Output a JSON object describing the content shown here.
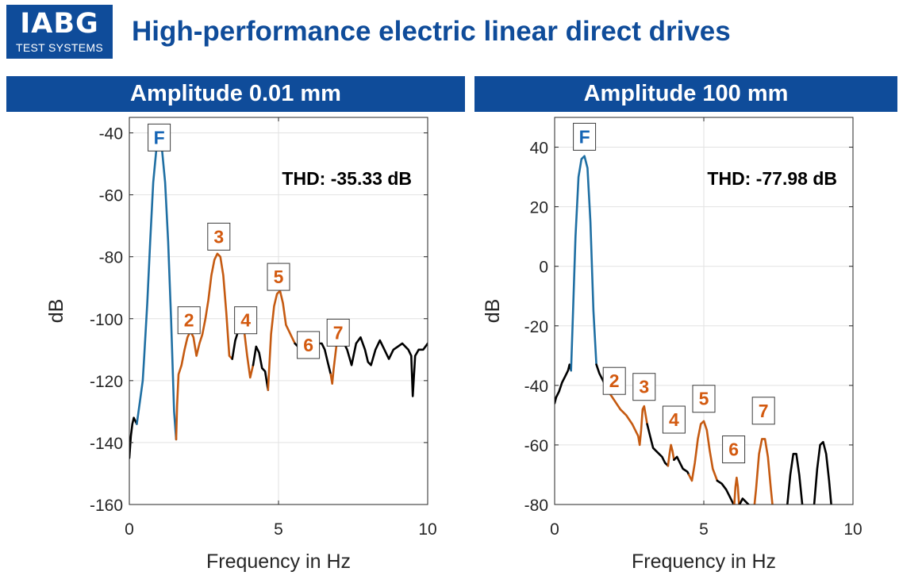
{
  "logo": {
    "brand": "IABG",
    "subtitle": "TEST SYSTEMS"
  },
  "title": "High-performance electric linear direct drives",
  "colors": {
    "brand_blue": "#0f4c9a",
    "fundamental": "#1f6fa3",
    "harmonic": "#c55a11",
    "other": "#000000",
    "label_blue": "#1565b5",
    "label_orange": "#d35a10"
  },
  "chart_data": [
    {
      "type": "line",
      "header": "Amplitude 0.01 mm",
      "xlabel": "Frequency in Hz",
      "ylabel": "dB",
      "xlim": [
        0,
        10
      ],
      "ylim": [
        -160,
        -35
      ],
      "xticks": [
        0,
        5,
        10
      ],
      "yticks": [
        -160,
        -140,
        -120,
        -100,
        -80,
        -60,
        -40
      ],
      "grid": true,
      "annotation": "THD: -35.33 dB",
      "peak_labels": [
        {
          "label": "F",
          "x": 1.0,
          "y": -41.5,
          "kind": "fundamental"
        },
        {
          "label": "2",
          "x": 2.0,
          "y": -100.5,
          "kind": "harmonic"
        },
        {
          "label": "3",
          "x": 3.0,
          "y": -73.5,
          "kind": "harmonic"
        },
        {
          "label": "4",
          "x": 3.9,
          "y": -100.5,
          "kind": "harmonic"
        },
        {
          "label": "5",
          "x": 5.0,
          "y": -86.5,
          "kind": "harmonic"
        },
        {
          "label": "6",
          "x": 6.0,
          "y": -108.5,
          "kind": "harmonic"
        },
        {
          "label": "7",
          "x": 7.0,
          "y": -104.5,
          "kind": "harmonic"
        }
      ],
      "series": [
        {
          "kind": "other",
          "points": [
            [
              0.0,
              -145
            ],
            [
              0.05,
              -138
            ],
            [
              0.1,
              -134
            ],
            [
              0.15,
              -132
            ],
            [
              0.2,
              -133
            ],
            [
              0.25,
              -134
            ]
          ]
        },
        {
          "kind": "fundamental",
          "points": [
            [
              0.25,
              -134
            ],
            [
              0.35,
              -127
            ],
            [
              0.45,
              -120
            ],
            [
              0.5,
              -112
            ],
            [
              0.6,
              -95
            ],
            [
              0.7,
              -75
            ],
            [
              0.8,
              -56
            ],
            [
              0.9,
              -46
            ],
            [
              1.0,
              -43
            ],
            [
              1.1,
              -46
            ],
            [
              1.2,
              -56
            ],
            [
              1.3,
              -75
            ],
            [
              1.4,
              -100
            ],
            [
              1.5,
              -130
            ],
            [
              1.57,
              -139
            ]
          ]
        },
        {
          "kind": "harmonic",
          "points": [
            [
              1.57,
              -139
            ],
            [
              1.6,
              -128
            ],
            [
              1.65,
              -118
            ],
            [
              1.75,
              -115
            ],
            [
              1.85,
              -110
            ],
            [
              1.95,
              -106
            ],
            [
              2.05,
              -104
            ],
            [
              2.15,
              -106
            ],
            [
              2.25,
              -112
            ],
            [
              2.35,
              -108
            ],
            [
              2.45,
              -105
            ],
            [
              2.55,
              -100
            ],
            [
              2.65,
              -94
            ],
            [
              2.75,
              -86
            ],
            [
              2.85,
              -81
            ],
            [
              2.95,
              -79
            ],
            [
              3.05,
              -80
            ],
            [
              3.15,
              -86
            ],
            [
              3.25,
              -98
            ],
            [
              3.35,
              -112
            ],
            [
              3.45,
              -113
            ]
          ]
        },
        {
          "kind": "other",
          "points": [
            [
              3.45,
              -113
            ],
            [
              3.55,
              -107
            ],
            [
              3.65,
              -104
            ],
            [
              3.75,
              -103
            ],
            [
              3.85,
              -104
            ]
          ]
        },
        {
          "kind": "harmonic",
          "points": [
            [
              3.85,
              -104
            ],
            [
              3.95,
              -112
            ],
            [
              4.05,
              -119
            ],
            [
              4.15,
              -115
            ]
          ]
        },
        {
          "kind": "other",
          "points": [
            [
              4.15,
              -115
            ],
            [
              4.25,
              -109
            ],
            [
              4.35,
              -111
            ],
            [
              4.45,
              -116
            ],
            [
              4.55,
              -117
            ],
            [
              4.65,
              -123
            ]
          ]
        },
        {
          "kind": "harmonic",
          "points": [
            [
              4.65,
              -123
            ],
            [
              4.75,
              -105
            ],
            [
              4.85,
              -96
            ],
            [
              4.95,
              -92
            ],
            [
              5.05,
              -91
            ],
            [
              5.15,
              -95
            ],
            [
              5.25,
              -102
            ],
            [
              5.35,
              -104
            ],
            [
              5.45,
              -106
            ],
            [
              5.55,
              -108
            ]
          ]
        },
        {
          "kind": "other",
          "points": [
            [
              5.55,
              -108
            ],
            [
              5.65,
              -109
            ],
            [
              5.75,
              -107
            ],
            [
              5.85,
              -109
            ]
          ]
        },
        {
          "kind": "harmonic",
          "points": [
            [
              5.85,
              -109
            ],
            [
              5.95,
              -110
            ],
            [
              6.05,
              -110
            ],
            [
              6.15,
              -109
            ],
            [
              6.25,
              -110
            ]
          ]
        },
        {
          "kind": "other",
          "points": [
            [
              6.25,
              -110
            ],
            [
              6.35,
              -108
            ],
            [
              6.45,
              -108
            ],
            [
              6.55,
              -110
            ],
            [
              6.65,
              -114
            ],
            [
              6.75,
              -118
            ]
          ]
        },
        {
          "kind": "harmonic",
          "points": [
            [
              6.75,
              -118
            ],
            [
              6.8,
              -121
            ],
            [
              6.85,
              -116
            ],
            [
              6.95,
              -108
            ],
            [
              7.05,
              -106
            ],
            [
              7.15,
              -107
            ]
          ]
        },
        {
          "kind": "other",
          "points": [
            [
              7.15,
              -107
            ],
            [
              7.3,
              -110
            ],
            [
              7.45,
              -115
            ],
            [
              7.6,
              -108
            ],
            [
              7.75,
              -106
            ],
            [
              7.9,
              -110
            ],
            [
              8.0,
              -114
            ],
            [
              8.1,
              -115
            ],
            [
              8.25,
              -110
            ],
            [
              8.4,
              -107
            ],
            [
              8.55,
              -110
            ],
            [
              8.7,
              -113
            ],
            [
              8.85,
              -110
            ],
            [
              9.0,
              -109
            ],
            [
              9.15,
              -108
            ],
            [
              9.35,
              -110
            ],
            [
              9.45,
              -112
            ],
            [
              9.5,
              -125
            ],
            [
              9.58,
              -112
            ],
            [
              9.7,
              -110
            ],
            [
              9.85,
              -110
            ],
            [
              10.0,
              -108
            ]
          ]
        }
      ]
    },
    {
      "type": "line",
      "header": "Amplitude 100 mm",
      "xlabel": "Frequency in Hz",
      "ylabel": "dB",
      "xlim": [
        0,
        10
      ],
      "ylim": [
        -80,
        50
      ],
      "xticks": [
        0,
        5,
        10
      ],
      "yticks": [
        -80,
        -60,
        -40,
        -20,
        0,
        20,
        40
      ],
      "grid": true,
      "annotation": "THD: -77.98 dB",
      "peak_labels": [
        {
          "label": "F",
          "x": 1.0,
          "y": 43.5,
          "kind": "fundamental"
        },
        {
          "label": "2",
          "x": 2.0,
          "y": -38.5,
          "kind": "harmonic"
        },
        {
          "label": "3",
          "x": 3.0,
          "y": -40.5,
          "kind": "harmonic"
        },
        {
          "label": "4",
          "x": 4.0,
          "y": -51.5,
          "kind": "harmonic"
        },
        {
          "label": "5",
          "x": 5.0,
          "y": -44.5,
          "kind": "harmonic"
        },
        {
          "label": "6",
          "x": 6.0,
          "y": -61.5,
          "kind": "harmonic"
        },
        {
          "label": "7",
          "x": 7.0,
          "y": -48.5,
          "kind": "harmonic"
        }
      ],
      "series": [
        {
          "kind": "other",
          "points": [
            [
              0.0,
              -46
            ],
            [
              0.05,
              -44
            ],
            [
              0.15,
              -42
            ],
            [
              0.25,
              -39
            ],
            [
              0.35,
              -37
            ],
            [
              0.45,
              -35
            ],
            [
              0.5,
              -33
            ],
            [
              0.55,
              -35
            ]
          ]
        },
        {
          "kind": "fundamental",
          "points": [
            [
              0.55,
              -35
            ],
            [
              0.6,
              -20
            ],
            [
              0.7,
              10
            ],
            [
              0.8,
              30
            ],
            [
              0.9,
              36
            ],
            [
              1.0,
              37
            ],
            [
              1.1,
              33
            ],
            [
              1.2,
              15
            ],
            [
              1.3,
              -15
            ],
            [
              1.4,
              -33
            ]
          ]
        },
        {
          "kind": "other",
          "points": [
            [
              1.4,
              -33
            ],
            [
              1.5,
              -36
            ],
            [
              1.6,
              -38
            ],
            [
              1.7,
              -40
            ]
          ]
        },
        {
          "kind": "harmonic",
          "points": [
            [
              1.7,
              -40
            ],
            [
              1.8,
              -42
            ],
            [
              2.0,
              -45
            ],
            [
              2.2,
              -48
            ],
            [
              2.4,
              -50
            ],
            [
              2.6,
              -53
            ],
            [
              2.8,
              -57
            ],
            [
              2.85,
              -60
            ],
            [
              2.9,
              -55
            ],
            [
              2.95,
              -48
            ],
            [
              3.0,
              -47
            ],
            [
              3.05,
              -50
            ],
            [
              3.1,
              -53
            ]
          ]
        },
        {
          "kind": "other",
          "points": [
            [
              3.1,
              -53
            ],
            [
              3.2,
              -57
            ],
            [
              3.3,
              -61
            ],
            [
              3.4,
              -62
            ],
            [
              3.5,
              -63
            ],
            [
              3.6,
              -64
            ],
            [
              3.7,
              -66
            ],
            [
              3.8,
              -67
            ]
          ]
        },
        {
          "kind": "harmonic",
          "points": [
            [
              3.8,
              -67
            ],
            [
              3.85,
              -63
            ],
            [
              3.9,
              -60
            ],
            [
              3.95,
              -62
            ],
            [
              4.0,
              -65
            ]
          ]
        },
        {
          "kind": "other",
          "points": [
            [
              4.0,
              -65
            ],
            [
              4.1,
              -64
            ],
            [
              4.2,
              -66
            ],
            [
              4.3,
              -68
            ],
            [
              4.45,
              -69
            ],
            [
              4.5,
              -70
            ]
          ]
        },
        {
          "kind": "harmonic",
          "points": [
            [
              4.5,
              -70
            ],
            [
              4.6,
              -72
            ],
            [
              4.7,
              -66
            ],
            [
              4.8,
              -58
            ],
            [
              4.9,
              -53
            ],
            [
              5.0,
              -52
            ],
            [
              5.1,
              -55
            ],
            [
              5.2,
              -62
            ],
            [
              5.3,
              -68
            ],
            [
              5.45,
              -72
            ]
          ]
        },
        {
          "kind": "other",
          "points": [
            [
              5.45,
              -72
            ],
            [
              5.6,
              -73
            ],
            [
              5.75,
              -75
            ],
            [
              5.85,
              -77
            ],
            [
              5.95,
              -79
            ],
            [
              6.0,
              -80
            ]
          ]
        },
        {
          "kind": "harmonic",
          "points": [
            [
              6.02,
              -80
            ],
            [
              6.06,
              -74
            ],
            [
              6.1,
              -71
            ],
            [
              6.14,
              -74
            ],
            [
              6.18,
              -80
            ]
          ]
        },
        {
          "kind": "other",
          "points": [
            [
              6.2,
              -80
            ],
            [
              6.3,
              -78
            ],
            [
              6.4,
              -79
            ],
            [
              6.5,
              -80
            ]
          ]
        },
        {
          "kind": "harmonic",
          "points": [
            [
              6.7,
              -80
            ],
            [
              6.75,
              -75
            ],
            [
              6.85,
              -63
            ],
            [
              6.95,
              -58
            ],
            [
              7.05,
              -58
            ],
            [
              7.15,
              -64
            ],
            [
              7.25,
              -75
            ],
            [
              7.3,
              -80
            ]
          ]
        },
        {
          "kind": "other",
          "points": [
            [
              7.8,
              -80
            ],
            [
              7.9,
              -70
            ],
            [
              8.0,
              -63
            ],
            [
              8.1,
              -63
            ],
            [
              8.2,
              -70
            ],
            [
              8.3,
              -80
            ]
          ]
        },
        {
          "kind": "other",
          "points": [
            [
              8.7,
              -80
            ],
            [
              8.8,
              -68
            ],
            [
              8.9,
              -60
            ],
            [
              9.0,
              -59
            ],
            [
              9.1,
              -63
            ],
            [
              9.2,
              -72
            ],
            [
              9.27,
              -80
            ]
          ]
        }
      ]
    }
  ]
}
